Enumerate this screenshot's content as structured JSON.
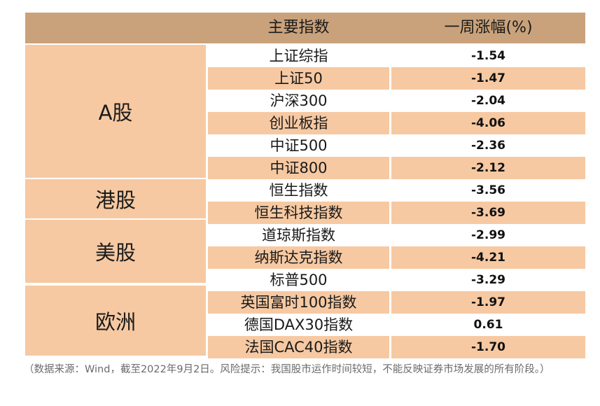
{
  "header": {
    "col1": "主要指数",
    "col2": "一周涨幅(%)"
  },
  "groups": [
    "A股",
    "港股",
    "美股",
    "欧洲"
  ],
  "rows": [
    {
      "name": "上证综指",
      "value": "-1.54"
    },
    {
      "name": "上证50",
      "value": "-1.47"
    },
    {
      "name": "沪深300",
      "value": "-2.04"
    },
    {
      "name": "创业板指",
      "value": "-4.06"
    },
    {
      "name": "中证500",
      "value": "-2.36"
    },
    {
      "name": "中证800",
      "value": "-2.12"
    },
    {
      "name": "恒生指数",
      "value": "-3.56"
    },
    {
      "name": "恒生科技指数",
      "value": "-3.69"
    },
    {
      "name": "道琼斯指数",
      "value": "-2.99"
    },
    {
      "name": "纳斯达克指数",
      "value": "-4.21"
    },
    {
      "name": "标普500",
      "value": "-3.29"
    },
    {
      "name": "英国富时100指数",
      "value": "-1.97"
    },
    {
      "name": "德国DAX30指数",
      "value": "0.61"
    },
    {
      "name": "法国CAC40指数",
      "value": "-1.70"
    }
  ],
  "note": "（数据来源：Wind，截至2022年9月2日。风险提示：我国股市运作时间较短，不能反映证券市场发展的所有阶段。）",
  "colors": {
    "header": "#c9a27b",
    "shade": "#f6c9a2",
    "note": "#6b6b6b"
  }
}
